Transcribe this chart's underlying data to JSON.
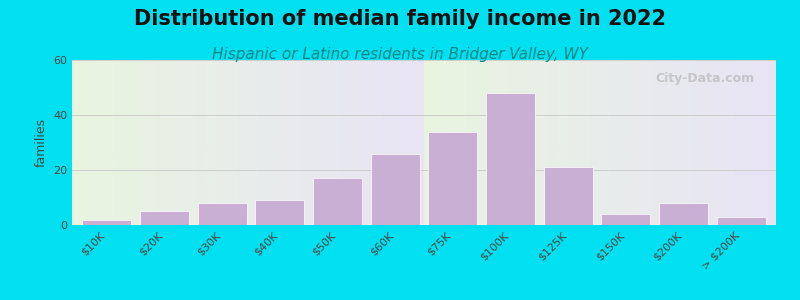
{
  "title": "Distribution of median family income in 2022",
  "subtitle": "Hispanic or Latino residents in Bridger Valley, WY",
  "ylabel": "families",
  "categories": [
    "$10K",
    "$20K",
    "$30K",
    "$40K",
    "$50K",
    "$60K",
    "$75K",
    "$100K",
    "$125K",
    "$150K",
    "$200K",
    "> $200K"
  ],
  "values": [
    2,
    5,
    8,
    9,
    17,
    26,
    34,
    48,
    21,
    4,
    8,
    3
  ],
  "bar_color": "#c9afd4",
  "ylim": [
    0,
    60
  ],
  "yticks": [
    0,
    20,
    40,
    60
  ],
  "background_outer": "#00e0f0",
  "background_plot_top": "#e8f5e0",
  "background_plot_bottom": "#e8e4f5",
  "title_fontsize": 15,
  "subtitle_fontsize": 11,
  "subtitle_color": "#008888",
  "watermark": "City-Data.com",
  "grid_color": "#cccccc"
}
